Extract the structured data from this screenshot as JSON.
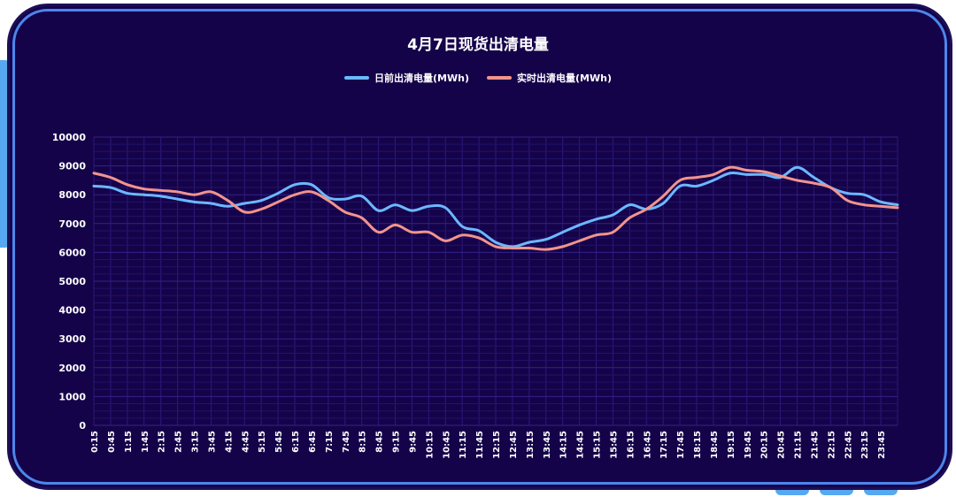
{
  "chart_data": {
    "type": "line",
    "title": "4月7日现货出清电量",
    "xlabel": "",
    "ylabel": "",
    "ylim": [
      0,
      10000
    ],
    "yticks": [
      0,
      1000,
      2000,
      3000,
      4000,
      5000,
      6000,
      7000,
      8000,
      9000,
      10000
    ],
    "grid": true,
    "legend_position": "top-center",
    "x_tick_labels": [
      "0:15",
      "0:45",
      "1:15",
      "1:45",
      "2:15",
      "2:45",
      "3:15",
      "3:45",
      "4:15",
      "4:45",
      "5:15",
      "5:45",
      "6:15",
      "6:45",
      "7:15",
      "7:45",
      "8:15",
      "8:45",
      "9:15",
      "9:45",
      "10:15",
      "10:45",
      "11:15",
      "11:45",
      "12:15",
      "12:45",
      "13:15",
      "13:45",
      "14:15",
      "14:45",
      "15:15",
      "15:45",
      "16:15",
      "16:45",
      "17:15",
      "17:45",
      "18:15",
      "18:45",
      "19:15",
      "19:45",
      "20:15",
      "20:45",
      "21:15",
      "21:45",
      "22:15",
      "22:45",
      "23:15",
      "23:45"
    ],
    "x_knots": [
      "0:15",
      "0:45",
      "1:15",
      "1:45",
      "2:15",
      "2:45",
      "3:15",
      "3:45",
      "4:15",
      "4:45",
      "5:15",
      "5:45",
      "6:15",
      "6:45",
      "7:15",
      "7:45",
      "8:15",
      "8:45",
      "9:15",
      "9:45",
      "10:15",
      "10:45",
      "11:15",
      "11:45",
      "12:15",
      "12:45",
      "13:15",
      "13:45",
      "14:15",
      "14:45",
      "15:15",
      "15:45",
      "16:15",
      "16:45",
      "17:15",
      "17:45",
      "18:15",
      "18:45",
      "19:15",
      "19:45",
      "20:15",
      "20:45",
      "21:15",
      "21:45",
      "22:15",
      "22:45",
      "23:15",
      "23:45",
      "24:00"
    ],
    "series": [
      {
        "name": "日前出清电量(MWh)",
        "color": "#6cb8ff",
        "values": [
          8300,
          8250,
          8050,
          8000,
          7950,
          7850,
          7750,
          7700,
          7600,
          7700,
          7800,
          8050,
          8350,
          8350,
          7900,
          7850,
          7950,
          7450,
          7650,
          7450,
          7600,
          7550,
          6900,
          6750,
          6350,
          6200,
          6350,
          6450,
          6700,
          6950,
          7150,
          7300,
          7650,
          7500,
          7700,
          8300,
          8300,
          8500,
          8750,
          8700,
          8700,
          8600,
          8950,
          8600,
          8250,
          8050,
          8000,
          7750,
          7650
        ]
      },
      {
        "name": "实时出清电量(MWh)",
        "color": "#f2948c",
        "values": [
          8750,
          8600,
          8350,
          8200,
          8150,
          8100,
          8000,
          8100,
          7800,
          7400,
          7500,
          7750,
          8000,
          8100,
          7800,
          7400,
          7200,
          6700,
          6950,
          6700,
          6700,
          6400,
          6600,
          6500,
          6200,
          6150,
          6150,
          6100,
          6200,
          6400,
          6600,
          6700,
          7200,
          7500,
          7950,
          8500,
          8600,
          8700,
          8950,
          8850,
          8800,
          8650,
          8500,
          8400,
          8250,
          7800,
          7650,
          7600,
          7550
        ]
      }
    ]
  }
}
